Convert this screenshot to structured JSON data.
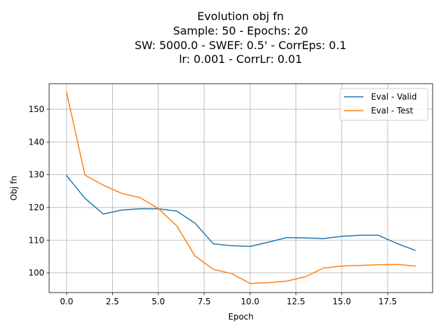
{
  "chart_data": {
    "type": "line",
    "title_lines": [
      "Evolution obj fn",
      "Sample: 50 - Epochs: 20",
      "SW: 5000.0 - SWEF: 0.5' - CorrEps: 0.1",
      "lr: 0.001 - CorrLr: 0.01"
    ],
    "xlabel": "Epoch",
    "ylabel": "Obj fn",
    "xlim": [
      -0.95,
      19.95
    ],
    "ylim": [
      94.0,
      157.8
    ],
    "xticks": [
      0.0,
      2.5,
      5.0,
      7.5,
      10.0,
      12.5,
      15.0,
      17.5
    ],
    "xtick_labels": [
      "0.0",
      "2.5",
      "5.0",
      "7.5",
      "10.0",
      "12.5",
      "15.0",
      "17.5"
    ],
    "yticks": [
      100,
      110,
      120,
      130,
      140,
      150
    ],
    "ytick_labels": [
      "100",
      "110",
      "120",
      "130",
      "140",
      "150"
    ],
    "grid": true,
    "legend_position": "top-right",
    "x": [
      0,
      1,
      2,
      3,
      4,
      5,
      6,
      7,
      8,
      9,
      10,
      11,
      12,
      13,
      14,
      15,
      16,
      17,
      18,
      19
    ],
    "series": [
      {
        "name": "Eval - Valid",
        "color": "#1f77b4",
        "values": [
          129.7,
          122.8,
          118.0,
          119.2,
          119.6,
          119.6,
          118.9,
          115.2,
          108.9,
          108.3,
          108.1,
          109.4,
          110.8,
          110.7,
          110.5,
          111.2,
          111.5,
          111.5,
          109.0,
          106.9
        ]
      },
      {
        "name": "Eval - Test",
        "color": "#ff7f0e",
        "values": [
          155.2,
          129.9,
          126.8,
          124.3,
          123.0,
          119.7,
          114.4,
          105.2,
          101.1,
          99.8,
          96.8,
          97.0,
          97.5,
          98.8,
          101.5,
          102.1,
          102.3,
          102.5,
          102.6,
          102.1
        ]
      }
    ]
  }
}
